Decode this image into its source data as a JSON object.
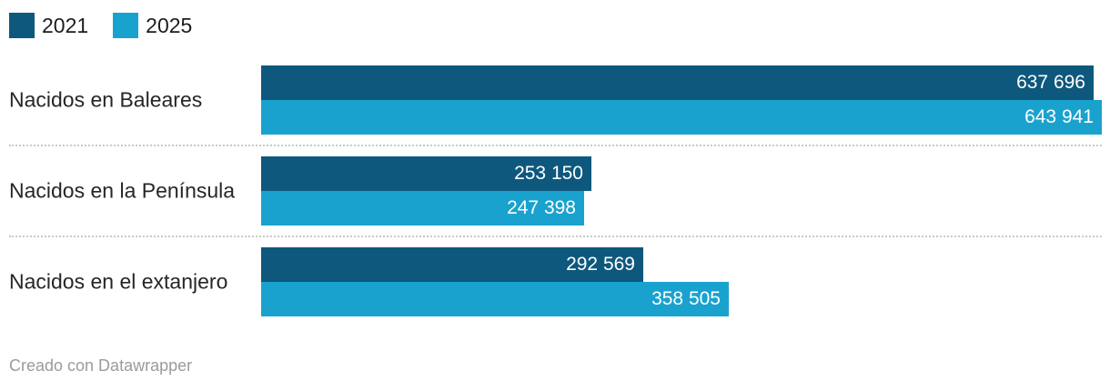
{
  "legend": {
    "position": "top-left",
    "items": [
      {
        "label": "2021",
        "color": "#0e587d"
      },
      {
        "label": "2025",
        "color": "#1aa2cf"
      }
    ]
  },
  "chart_data": {
    "type": "bar",
    "orientation": "horizontal",
    "categories": [
      "Nacidos en Baleares",
      "Nacidos en la Península",
      "Nacidos en el extanjero"
    ],
    "series": [
      {
        "name": "2021",
        "color": "#0e587d",
        "values": [
          637696,
          253150,
          292569
        ],
        "labels": [
          "637 696",
          "253 150",
          "292 569"
        ]
      },
      {
        "name": "2025",
        "color": "#1aa2cf",
        "values": [
          643941,
          247398,
          358505
        ],
        "labels": [
          "643 941",
          "247 398",
          "358 505"
        ]
      }
    ],
    "xlim": [
      0,
      643941
    ],
    "grid": false,
    "value_labels": "inside-end, white",
    "legend_position": "top-left"
  },
  "footer": {
    "credit": "Creado con Datawrapper"
  },
  "colors": {
    "series_2021": "#0e587d",
    "series_2025": "#1aa2cf",
    "category_text": "#262626",
    "legend_text": "#1d1d1d",
    "value_text": "#ffffff",
    "separator": "#c9c9c9",
    "credit_text": "#9b9b9b",
    "background": "#ffffff"
  }
}
